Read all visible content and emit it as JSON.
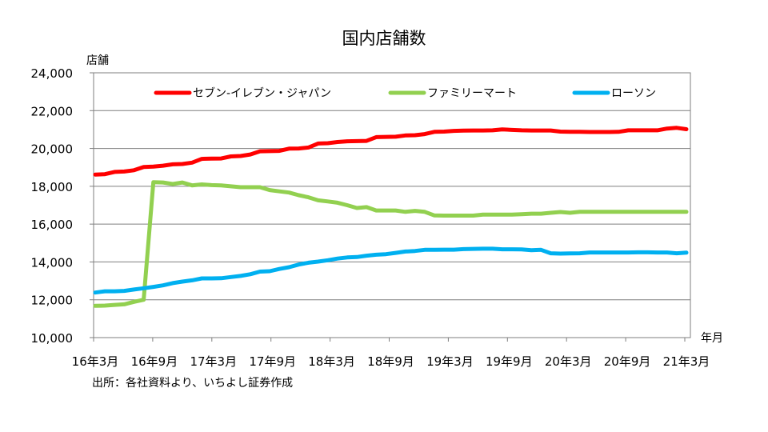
{
  "chart_data": {
    "type": "line",
    "title": "国内店舗数",
    "ylabel": "店舗",
    "xlabel": "年月",
    "ylim": [
      10000,
      24000
    ],
    "yticks": [
      10000,
      12000,
      14000,
      16000,
      18000,
      20000,
      22000,
      24000
    ],
    "ytick_labels": [
      "10,000",
      "12,000",
      "14,000",
      "16,000",
      "18,000",
      "20,000",
      "22,000",
      "24,000"
    ],
    "xlim": [
      0,
      60
    ],
    "xtick_positions": [
      0,
      6,
      12,
      18,
      24,
      30,
      36,
      42,
      48,
      54,
      60
    ],
    "xtick_labels": [
      "16年3月",
      "16年9月",
      "17年3月",
      "17年9月",
      "18年3月",
      "18年9月",
      "19年3月",
      "19年9月",
      "20年3月",
      "20年9月",
      "21年3月"
    ],
    "grid": true,
    "legend_position": "top",
    "series": [
      {
        "name": "セブン-イレブン・ジャパン",
        "color": "#ff0000",
        "values": [
          18620,
          18640,
          18760,
          18780,
          18850,
          19020,
          19040,
          19090,
          19160,
          19180,
          19250,
          19450,
          19460,
          19470,
          19580,
          19600,
          19680,
          19850,
          19860,
          19870,
          19990,
          20000,
          20050,
          20260,
          20280,
          20340,
          20380,
          20390,
          20400,
          20600,
          20610,
          20620,
          20690,
          20700,
          20760,
          20880,
          20890,
          20930,
          20940,
          20950,
          20950,
          20960,
          21010,
          20980,
          20960,
          20950,
          20950,
          20950,
          20890,
          20880,
          20880,
          20870,
          20870,
          20870,
          20880,
          20960,
          20960,
          20960,
          20960,
          21050,
          21090,
          21020
        ]
      },
      {
        "name": "ファミリーマート",
        "color": "#92d050",
        "values": [
          11680,
          11690,
          11730,
          11760,
          11890,
          12000,
          18220,
          18200,
          18120,
          18200,
          18050,
          18100,
          18060,
          18050,
          18000,
          17950,
          17950,
          17950,
          17800,
          17730,
          17670,
          17530,
          17420,
          17260,
          17200,
          17130,
          17000,
          16850,
          16900,
          16720,
          16720,
          16720,
          16650,
          16700,
          16650,
          16460,
          16450,
          16450,
          16450,
          16450,
          16500,
          16500,
          16500,
          16500,
          16520,
          16550,
          16550,
          16600,
          16640,
          16600,
          16650,
          16650,
          16650,
          16650,
          16650,
          16650,
          16650,
          16650,
          16650,
          16650,
          16650,
          16650
        ]
      },
      {
        "name": "ローソン",
        "color": "#00b0f0",
        "values": [
          12380,
          12450,
          12450,
          12470,
          12540,
          12610,
          12680,
          12760,
          12880,
          12960,
          13030,
          13130,
          13130,
          13140,
          13200,
          13260,
          13350,
          13490,
          13510,
          13630,
          13720,
          13860,
          13960,
          14020,
          14090,
          14180,
          14240,
          14260,
          14330,
          14380,
          14410,
          14480,
          14550,
          14580,
          14640,
          14640,
          14650,
          14650,
          14680,
          14690,
          14700,
          14700,
          14670,
          14670,
          14660,
          14620,
          14640,
          14460,
          14440,
          14450,
          14460,
          14500,
          14500,
          14500,
          14500,
          14500,
          14510,
          14510,
          14500,
          14500,
          14460,
          14490
        ]
      }
    ]
  },
  "source_note": "出所：各社資料より、いちよし証券作成"
}
